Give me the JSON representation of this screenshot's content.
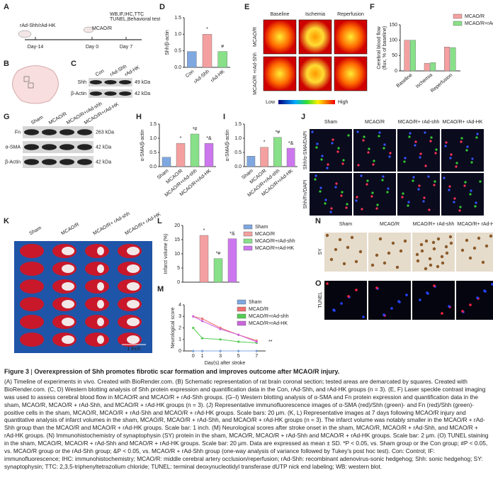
{
  "figure": {
    "A": {
      "label": "A",
      "injection": "rAd-Shh/rAd-HK",
      "surgery": "MCAO/R",
      "tests": [
        "WB,IF,IHC,TTC",
        "TUNEL,Behavioral test"
      ],
      "days": [
        "Day-14",
        "Day 0",
        "Day 7"
      ]
    },
    "B": {
      "label": "B"
    },
    "C": {
      "label": "C",
      "lanes": [
        "Con",
        "rAd-Shh",
        "rAd-HK"
      ],
      "rows": [
        "Shh",
        "β-Actin"
      ],
      "sizes": [
        "49 kDa",
        "42 kDa"
      ]
    },
    "D": {
      "label": "D",
      "type": "bar",
      "ylabel": "Shh/β-actin",
      "categories": [
        "Con",
        "rAd-Shh",
        "rAd-HK"
      ],
      "values": [
        0.48,
        1.0,
        0.48
      ],
      "colors": [
        "#7fa7e0",
        "#f4a0a0",
        "#88e088"
      ],
      "annotations": [
        null,
        "*",
        "#"
      ],
      "ylim": [
        0,
        1.5
      ],
      "yticks": [
        {
          "value": 0,
          "label": "0.0"
        },
        {
          "value": 0.5,
          "label": "0.5"
        },
        {
          "value": 1,
          "label": "1.0"
        },
        {
          "value": 1.5,
          "label": "1.5"
        }
      ]
    },
    "E": {
      "label": "E",
      "columns": [
        "Baseline",
        "Ischemia",
        "Reperfusion"
      ],
      "rows": [
        "MCAO/R",
        "MCAO/R +rAd-Shh"
      ],
      "scale": [
        "Low",
        "High"
      ]
    },
    "F": {
      "label": "F",
      "type": "grouped-bar",
      "ylabel": [
        "Cerebral blood flow",
        "(flux, % of baseline)"
      ],
      "categories": [
        "Baseline",
        "Ischemia",
        "Reperfusion"
      ],
      "series": [
        {
          "name": "MCAO/R",
          "color": "#f4a0a0",
          "values": [
            100,
            25,
            78
          ]
        },
        {
          "name": "MCAO/R+rAd-Shh",
          "color": "#88e088",
          "values": [
            100,
            27,
            76
          ]
        }
      ],
      "ylim": [
        0,
        150
      ],
      "yticks": [
        0,
        50,
        100,
        150
      ]
    },
    "G": {
      "label": "G",
      "lanes": [
        "Sham",
        "MCAO/R",
        "MCAO/R+rAd-shh",
        "MCAO/R+rAd-HK"
      ],
      "rows": [
        "Fn",
        "α-SMA",
        "β-Actin"
      ],
      "sizes": [
        "263 kDa",
        "42 kDa",
        "42 kDa"
      ]
    },
    "H": {
      "label": "H",
      "type": "bar",
      "ylabel": "α-SMA/β-actin",
      "categories": [
        "Sham",
        "MCAO/R",
        "MCAO/R+rAd-shh",
        "MCAO/R+rAd-HK"
      ],
      "values": [
        0.33,
        0.82,
        1.15,
        0.82
      ],
      "colors": [
        "#7fa7e0",
        "#f4a0a0",
        "#88e088",
        "#cc77ee"
      ],
      "annotations": [
        null,
        "*",
        "*#",
        "*&"
      ],
      "ylim": [
        0,
        1.5
      ],
      "yticks": [
        {
          "value": 0,
          "label": "0.0"
        },
        {
          "value": 0.5,
          "label": "0.5"
        },
        {
          "value": 1,
          "label": "1.0"
        },
        {
          "value": 1.5,
          "label": "1.5"
        }
      ]
    },
    "I": {
      "label": "I",
      "type": "bar",
      "ylabel": "α-SMA/β-actin",
      "categories": [
        "Sham",
        "MCAO/R",
        "MCAO/R+rAd-shh",
        "MCAO/R+rAd-HK"
      ],
      "values": [
        0.37,
        0.68,
        1.03,
        0.65
      ],
      "colors": [
        "#7fa7e0",
        "#f4a0a0",
        "#88e088",
        "#cc77ee"
      ],
      "annotations": [
        null,
        "*",
        "*#",
        "*&"
      ],
      "ylim": [
        0,
        1.5
      ],
      "yticks": [
        {
          "value": 0,
          "label": "0.0"
        },
        {
          "value": 0.5,
          "label": "0.5"
        },
        {
          "value": 1,
          "label": "1.0"
        },
        {
          "value": 1.5,
          "label": "1.5"
        }
      ]
    },
    "J": {
      "label": "J",
      "columns": [
        "Sham",
        "MCAO/R",
        "MCAO/R+ rAd-shh",
        "MCAO/R+ rAd-HK"
      ],
      "rows": [
        "Shh/α-SMA/DAPI",
        "Shh/Fn/DAPI"
      ]
    },
    "K": {
      "label": "K",
      "columns": [
        "Sham",
        "MCAO/R",
        "MCAO/R+ rAd-shh",
        "MCAO/R+ rAd-HK"
      ],
      "scale": "1 inch"
    },
    "L": {
      "label": "L",
      "type": "bar",
      "legend": true,
      "ylabel": "Infarct volume (%)",
      "categories": [
        "Sham",
        "MCAO/R",
        "MCAO/R+rAd-shh",
        "MCAO/R+rAd-HK"
      ],
      "values": [
        0,
        16.5,
        8.3,
        15.3
      ],
      "colors": [
        "#7fa7e0",
        "#f4a0a0",
        "#88e088",
        "#cc77ee"
      ],
      "annotations": [
        null,
        "*",
        "*#",
        "*&"
      ],
      "ylim": [
        0,
        20
      ],
      "yticks": [
        0,
        5,
        10,
        15,
        20
      ]
    },
    "M": {
      "label": "M",
      "type": "line",
      "ylabel": "Neurological score",
      "xlabel": "Day(s) after stroke",
      "x": [
        0,
        1,
        3,
        5,
        7
      ],
      "series": [
        {
          "name": "Sham",
          "color": "#7fa7e0",
          "values": [
            0,
            0,
            0,
            0,
            0
          ]
        },
        {
          "name": "MCAO/R",
          "color": "#f07070",
          "values": [
            3.0,
            2.8,
            2.0,
            1.4,
            0.9
          ]
        },
        {
          "name": "MCAO/R+rAd-shh",
          "color": "#55cc55",
          "values": [
            2.0,
            1.1,
            1.0,
            0.8,
            0.7
          ]
        },
        {
          "name": "MCAO/R+rAd-HK",
          "color": "#cc66dd",
          "values": [
            3.0,
            2.6,
            1.9,
            1.4,
            0.8
          ]
        }
      ],
      "annotation": "**",
      "xlim": [
        -1,
        8
      ],
      "ylim": [
        0,
        4
      ],
      "xticks": [
        0,
        1,
        3,
        5,
        7
      ],
      "yticks": [
        0,
        1,
        2,
        3,
        4
      ]
    },
    "N": {
      "label": "N",
      "columns": [
        "Sham",
        "MCAO/R",
        "MCAO/R+ rAd-shh",
        "MCAO/R+ rAd-HK"
      ],
      "row": "SY"
    },
    "O": {
      "label": "O",
      "row": "TUNEL"
    }
  },
  "caption": {
    "number": "Figure 3",
    "title": "Overexpression of Shh promotes fibrotic scar formation and improves outcome after MCAO/R injury.",
    "body": "(A) Timeline of experiments in vivo. Created with BioRender.com. (B) Schematic representation of rat brain coronal section; tested areas are demarcated by squares. Created with BioRender.com. (C, D) Western blotting analysis of Shh protein expression and quantification data in the Con, rAd-Shh, and rAd-HK groups (n = 3). (E, F) Laser speckle contrast imaging was used to assess cerebral blood flow in MCAO/R and MCAO/R + rAd-Shh groups. (G–I) Western blotting analysis of α-SMA and Fn protein expression and quantification data in the sham, MCAO/R, MCAO/R + rAd-Shh, and MCAO/R + rAd-HK groups (n = 3). (J) Representative immunofluorescence images of α-SMA (red)/Shh (green)- and Fn (red)/Shh (green)-positive cells in the sham, MCAO/R, MCAO/R + rAd-Shh and MCAO/R + rAd-HK groups. Scale bars: 20 μm. (K, L) Representative images at 7 days following MCAO/R injury and quantitative analysis of infarct volumes in the sham, MCAO/R, MCAO/R + rAd-Shh, and MCAO/R + rAd-HK groups (n = 3). The infarct volume was notably smaller in the MCAO/R + rAd-Shh group than the MCAO/R and MCAO/R + rAd-HK groups. Scale bar: 1 inch. (M) Neurological scores after stroke onset in the sham, MCAO/R, MCAO/R + rAd-Shh, and MCAO/R + rAd-HK groups. (N) Immunohistochemistry of synaptophysin (SY) protein in the sham, MCAO/R, MCAO/R + rAd-Shh and MCAO/R + rAd-HK groups. Scale bar: 2 μm. (O) TUNEL staining in the sham, MCAO/R, MCAO/R + rAd-Shh and MCAO/R + rAd-HK groups. Scale bar: 20 μm. Data are expressed as mean ± SD. *P < 0.05, vs. Sham group or the Con group; #P < 0.05, vs. MCAO/R group or the rAd-Shh group; &P < 0.05, vs. MCAO/R + rAd-Shh group (one-way analysis of variance followed by Tukey's post hoc test). Con: Control; IF: immunofluorescence; IHC: immunohistochemistry; MCAO/R: middle cerebral artery occlusion/reperfusion; rAd-Shh: recombinant adenovirus-sonic hedgehog; Shh: sonic hedgehog; SY: synaptophysin; TTC: 2,3,5-triphenyltetrazolium chloride; TUNEL: terminal deoxynucleotidyl transferase dUTP nick end labeling; WB: western blot."
  }
}
